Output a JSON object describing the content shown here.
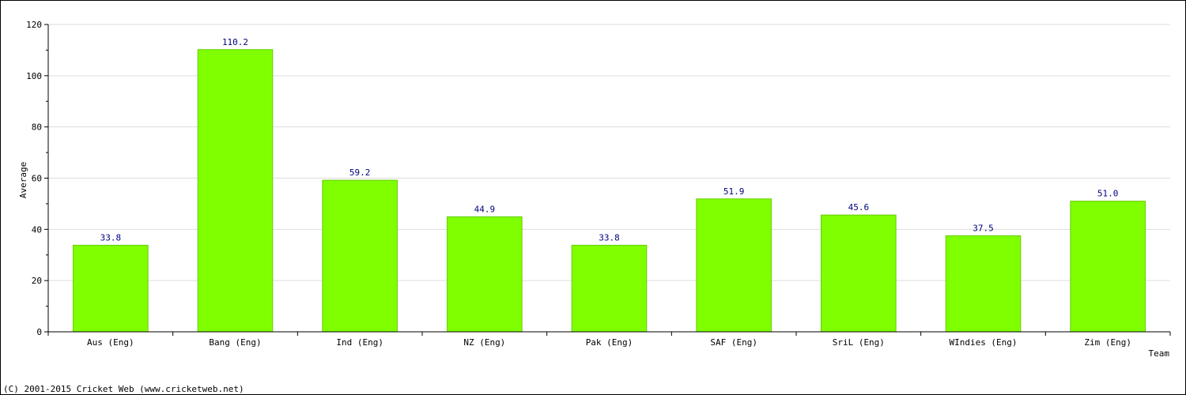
{
  "chart_data": {
    "type": "bar",
    "categories": [
      "Aus (Eng)",
      "Bang (Eng)",
      "Ind (Eng)",
      "NZ (Eng)",
      "Pak (Eng)",
      "SAF (Eng)",
      "SriL (Eng)",
      "WIndies (Eng)",
      "Zim (Eng)"
    ],
    "values": [
      33.8,
      110.2,
      59.2,
      44.9,
      33.8,
      51.9,
      45.6,
      37.5,
      51.0
    ],
    "value_labels": [
      "33.8",
      "110.2",
      "59.2",
      "44.9",
      "33.8",
      "51.9",
      "45.6",
      "37.5",
      "51.0"
    ],
    "xlabel": "Team",
    "ylabel": "Average",
    "ylim": [
      0,
      120
    ],
    "yticks": [
      0,
      20,
      40,
      60,
      80,
      100,
      120
    ],
    "grid": true,
    "colors": {
      "bar": "#7fff00",
      "bar_edge": "#66cc00",
      "value_label": "#000080",
      "grid": "#dddddd",
      "axis": "#000000"
    }
  },
  "footer": {
    "copyright": "(C) 2001-2015 Cricket Web (www.cricketweb.net)"
  }
}
